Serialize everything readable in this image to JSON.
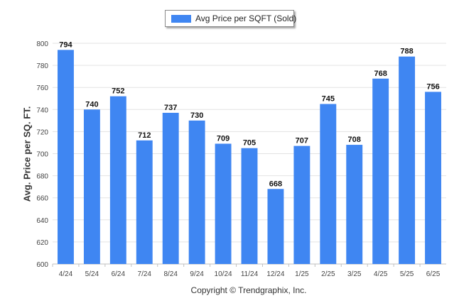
{
  "legend": {
    "label": "Avg Price per SQFT (Sold)"
  },
  "footer": {
    "copyright": "Copyright © Trendgraphix, Inc."
  },
  "colors": {
    "bar": "#3f86f2",
    "grid": "#e3e3e3",
    "axis": "#c0c0c0"
  },
  "chart_data": {
    "type": "bar",
    "categories": [
      "4/24",
      "5/24",
      "6/24",
      "7/24",
      "8/24",
      "9/24",
      "10/24",
      "11/24",
      "12/24",
      "1/25",
      "2/25",
      "3/25",
      "4/25",
      "5/25",
      "6/25"
    ],
    "series": [
      {
        "name": "Avg Price per SQFT (Sold)",
        "values": [
          794,
          740,
          752,
          712,
          737,
          730,
          709,
          705,
          668,
          707,
          745,
          708,
          768,
          788,
          756
        ]
      }
    ],
    "ylabel": "Avg. Price per SQ. FT.",
    "xlabel": "",
    "ylim": [
      600,
      800
    ],
    "yticks": [
      600,
      620,
      640,
      660,
      680,
      700,
      720,
      740,
      760,
      780,
      800
    ],
    "grid": true,
    "legend_position": "top-center",
    "data_labels": true
  }
}
